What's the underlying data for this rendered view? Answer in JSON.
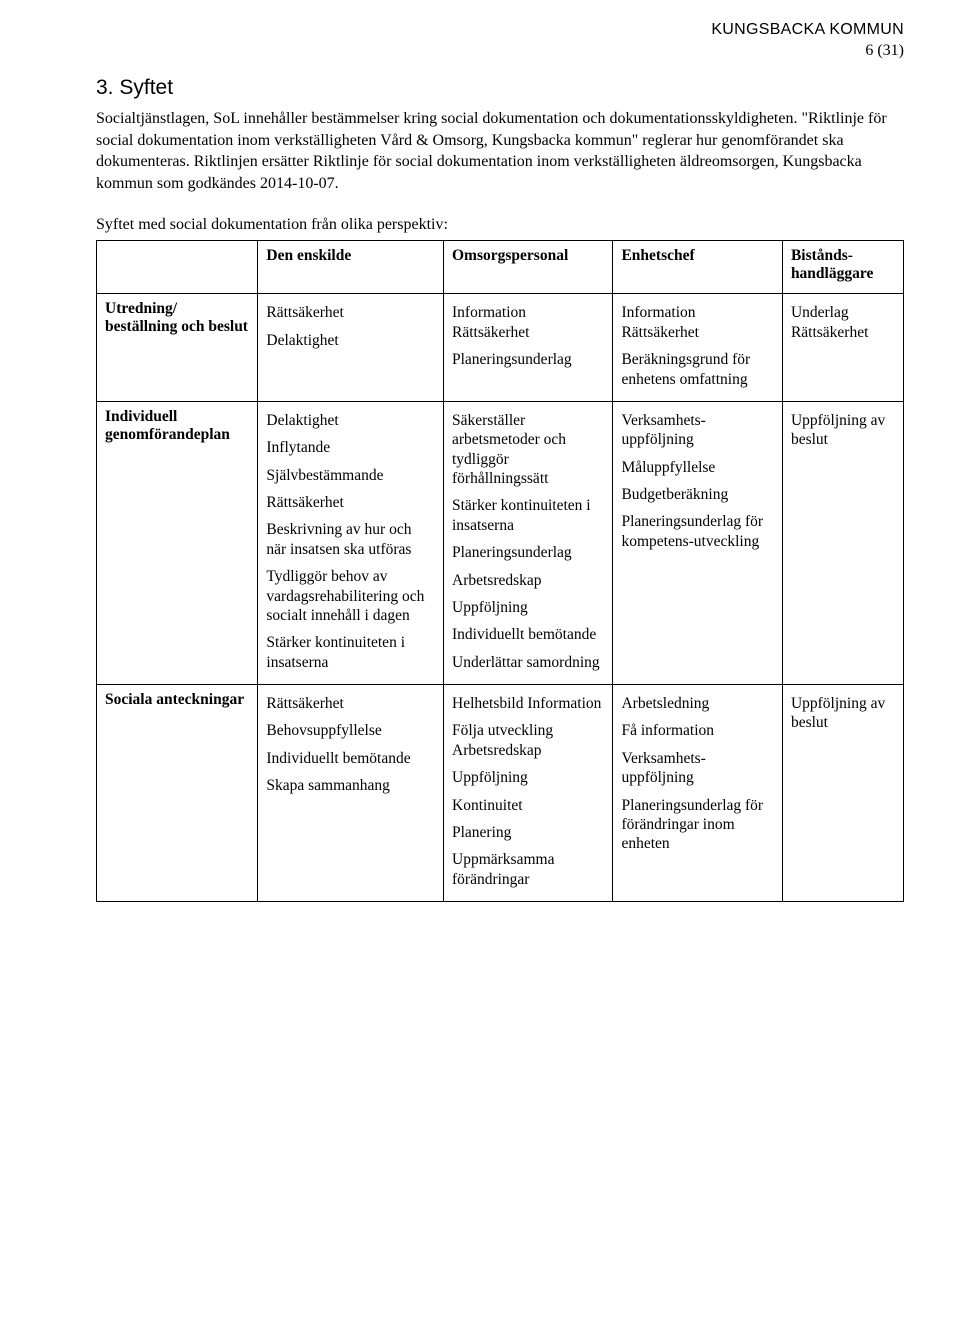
{
  "header": {
    "org": "KUNGSBACKA KOMMUN",
    "page_label": "6 (31)"
  },
  "section": {
    "title": "3. Syftet",
    "para1": "Socialtjänstlagen, SoL innehåller bestämmelser kring social dokumentation och dokumentationsskyldigheten. \"Riktlinje för social dokumentation inom verkställigheten Vård & Omsorg, Kungsbacka kommun\" reglerar hur genomförandet ska dokumenteras. Riktlinjen ersätter Riktlinje för social dokumentation inom verkställigheten äldreomsorgen, Kungsbacka kommun som godkändes 2014-10-07.",
    "caption": "Syftet med social dokumentation från olika perspektiv:"
  },
  "table": {
    "head": {
      "c0": "",
      "c1": "Den enskilde",
      "c2": "Omsorgspersonal",
      "c3": "Enhetschef",
      "c4": "Bistånds-handläggare"
    },
    "rows": [
      {
        "label": "Utredning/ beställning och beslut",
        "c1": [
          "Rättsäkerhet",
          "Delaktighet"
        ],
        "c2": [
          "Information Rättsäkerhet",
          "Planeringsunderlag"
        ],
        "c3": [
          "Information Rättsäkerhet",
          "Beräkningsgrund för enhetens omfattning"
        ],
        "c4": [
          "Underlag Rättsäkerhet"
        ]
      },
      {
        "label": "Individuell genomförandeplan",
        "c1": [
          "Delaktighet",
          "Inflytande",
          "Självbestämmande",
          "Rättsäkerhet",
          "Beskrivning av hur och när insatsen ska utföras",
          "Tydliggör behov av vardagsrehabilitering och socialt innehåll i dagen",
          "Stärker kontinuiteten i insatserna"
        ],
        "c2": [
          "Säkerställer arbetsmetoder och tydliggör förhållningssätt",
          "Stärker kontinuiteten i insatserna",
          "Planeringsunderlag",
          "Arbetsredskap",
          "Uppföljning",
          "Individuellt bemötande",
          "Underlättar samordning"
        ],
        "c3": [
          "Verksamhets-uppföljning",
          "Måluppfyllelse",
          "Budgetberäkning",
          "Planeringsunderlag för kompetens-utveckling"
        ],
        "c4": [
          "Uppföljning av beslut"
        ]
      },
      {
        "label": "Sociala anteckningar",
        "c1": [
          "Rättsäkerhet",
          "Behovsuppfyllelse",
          "Individuellt bemötande",
          "Skapa sammanhang"
        ],
        "c2": [
          "Helhetsbild Information",
          "Följa utveckling Arbetsredskap",
          "Uppföljning",
          "Kontinuitet",
          "Planering",
          "Uppmärksamma förändringar"
        ],
        "c3": [
          "Arbetsledning",
          "Få information",
          "Verksamhets-uppföljning",
          "Planeringsunderlag för förändringar inom enheten"
        ],
        "c4": [
          "Uppföljning av beslut"
        ]
      }
    ]
  }
}
